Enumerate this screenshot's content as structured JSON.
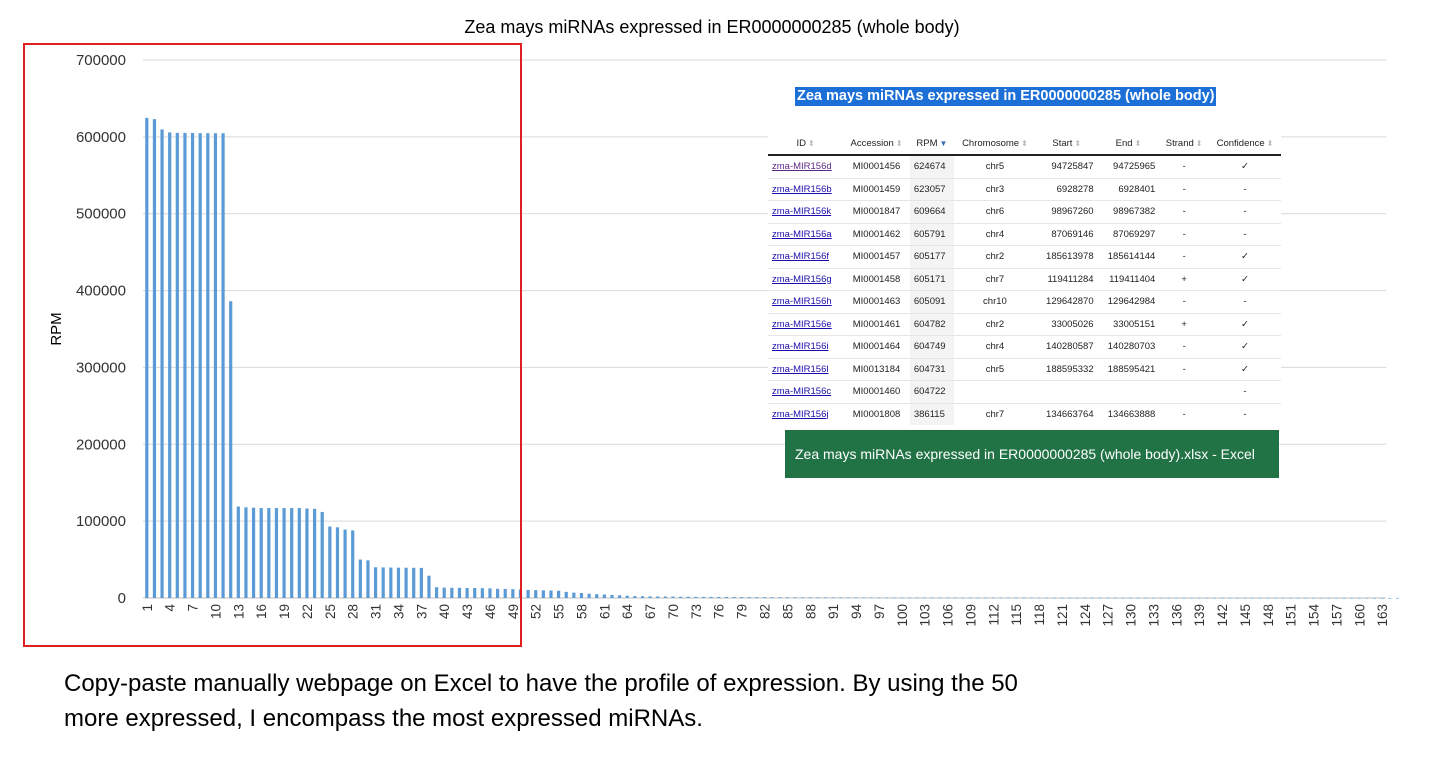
{
  "chart_data": {
    "type": "bar",
    "title": "Zea mays miRNAs expressed in ER0000000285 (whole body)",
    "xlabel": "",
    "ylabel": "RPM",
    "ylim": [
      0,
      700000
    ],
    "yticks": [
      0,
      100000,
      200000,
      300000,
      400000,
      500000,
      600000,
      700000
    ],
    "grid": true,
    "x_start": 1,
    "x_end": 163,
    "x_tick_step": 3,
    "bar_color": "#5b9bd5",
    "values": [
      624674,
      623057,
      609664,
      605791,
      605177,
      605171,
      605091,
      604782,
      604749,
      604731,
      604722,
      386115,
      119000,
      118000,
      117500,
      117000,
      117000,
      117000,
      117000,
      117000,
      117000,
      116500,
      116000,
      112000,
      93000,
      92000,
      89000,
      88000,
      50000,
      49000,
      40000,
      39800,
      39600,
      39500,
      39400,
      39300,
      39200,
      29000,
      14000,
      13500,
      13300,
      13200,
      13100,
      13000,
      12800,
      12500,
      12000,
      11800,
      11500,
      11000,
      10500,
      10200,
      10000,
      9800,
      9500,
      8000,
      7000,
      6500,
      5500,
      5000,
      4500,
      4000,
      3500,
      3000,
      2500,
      2300,
      2100,
      2000,
      1900,
      1800,
      1700,
      1600,
      1500,
      1450,
      1400,
      1350,
      1300,
      1250,
      1200,
      1150,
      1100,
      1050,
      1000,
      980,
      960,
      940,
      920,
      900,
      880,
      860,
      840,
      820,
      800,
      780,
      760,
      740,
      720,
      700,
      680,
      660,
      640,
      620,
      600,
      580,
      560,
      540,
      520,
      500,
      490,
      480,
      470,
      460,
      450,
      440,
      430,
      420,
      410,
      400,
      390,
      380,
      370,
      360,
      350,
      340,
      330,
      320,
      310,
      300,
      290,
      280,
      270,
      260,
      250,
      240,
      230,
      220,
      210,
      200,
      195,
      190,
      185,
      180,
      175,
      170,
      165,
      160,
      155,
      150,
      145,
      140,
      135,
      130,
      125,
      120,
      115,
      110,
      105,
      100,
      95,
      90,
      85,
      80,
      75,
      70,
      65
    ]
  },
  "inset": {
    "title": "Zea mays miRNAs expressed in ER0000000285 (whole body)",
    "columns": [
      "ID",
      "Accession",
      "RPM",
      "Chromosome",
      "Start",
      "End",
      "Strand",
      "Confidence"
    ],
    "sorted_column": "RPM",
    "rows": [
      {
        "id": "zma-MIR156d",
        "accession": "MI0001456",
        "rpm": "624674",
        "chromosome": "chr5",
        "start": "94725847",
        "end": "94725965",
        "strand": "-",
        "confidence": "✓"
      },
      {
        "id": "zma-MIR156b",
        "accession": "MI0001459",
        "rpm": "623057",
        "chromosome": "chr3",
        "start": "6928278",
        "end": "6928401",
        "strand": "-",
        "confidence": "-"
      },
      {
        "id": "zma-MIR156k",
        "accession": "MI0001847",
        "rpm": "609664",
        "chromosome": "chr6",
        "start": "98967260",
        "end": "98967382",
        "strand": "-",
        "confidence": "-"
      },
      {
        "id": "zma-MIR156a",
        "accession": "MI0001462",
        "rpm": "605791",
        "chromosome": "chr4",
        "start": "87069146",
        "end": "87069297",
        "strand": "-",
        "confidence": "-"
      },
      {
        "id": "zma-MIR156f",
        "accession": "MI0001457",
        "rpm": "605177",
        "chromosome": "chr2",
        "start": "185613978",
        "end": "185614144",
        "strand": "-",
        "confidence": "✓"
      },
      {
        "id": "zma-MIR156g",
        "accession": "MI0001458",
        "rpm": "605171",
        "chromosome": "chr7",
        "start": "119411284",
        "end": "119411404",
        "strand": "+",
        "confidence": "✓"
      },
      {
        "id": "zma-MIR156h",
        "accession": "MI0001463",
        "rpm": "605091",
        "chromosome": "chr10",
        "start": "129642870",
        "end": "129642984",
        "strand": "-",
        "confidence": "-"
      },
      {
        "id": "zma-MIR156e",
        "accession": "MI0001461",
        "rpm": "604782",
        "chromosome": "chr2",
        "start": "33005026",
        "end": "33005151",
        "strand": "+",
        "confidence": "✓"
      },
      {
        "id": "zma-MIR156i",
        "accession": "MI0001464",
        "rpm": "604749",
        "chromosome": "chr4",
        "start": "140280587",
        "end": "140280703",
        "strand": "-",
        "confidence": "✓"
      },
      {
        "id": "zma-MIR156l",
        "accession": "MI0013184",
        "rpm": "604731",
        "chromosome": "chr5",
        "start": "188595332",
        "end": "188595421",
        "strand": "-",
        "confidence": "✓"
      },
      {
        "id": "zma-MIR156c",
        "accession": "MI0001460",
        "rpm": "604722",
        "chromosome": "",
        "start": "",
        "end": "",
        "strand": "",
        "confidence": "-"
      },
      {
        "id": "zma-MIR156j",
        "accession": "MI0001808",
        "rpm": "386115",
        "chromosome": "chr7",
        "start": "134663764",
        "end": "134663888",
        "strand": "-",
        "confidence": "-"
      }
    ]
  },
  "excel_banner": {
    "text": "Zea mays miRNAs expressed in ER0000000285 (whole body).xlsx - Excel",
    "color": "#217346"
  },
  "highlight_box_color": "#e02020",
  "caption": {
    "line1": "Copy-paste manually webpage on Excel to have the profile of expression. By using the 50",
    "line2": "more expressed, I encompass the most expressed miRNAs."
  }
}
